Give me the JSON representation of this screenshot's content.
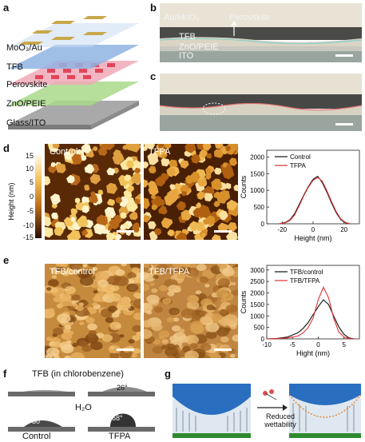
{
  "panel_labels": {
    "a": "a",
    "b": "b",
    "c": "c",
    "d": "d",
    "e": "e",
    "f": "f",
    "g": "g"
  },
  "panel_a": {
    "layers": [
      "MoO₃/Au",
      "TFB",
      "Perovskite",
      "ZnO/PEIE",
      "Glass/ITO"
    ],
    "colors": {
      "au": "#c9a84a",
      "tfb": "#8fb4e3",
      "perovskite": "#e05a6a",
      "zno": "#a8d98a",
      "glass": "#b0b0b0"
    }
  },
  "panel_b": {
    "labels": {
      "top": "Au/MnO₃",
      "perovskite": "Perovskite",
      "tfb": "TFB",
      "zno": "ZnO/PEIE",
      "ito": "ITO"
    }
  },
  "panel_d": {
    "colorbar": {
      "title": "Height (nm)",
      "ticks": [
        "15",
        "10",
        "5",
        "0",
        "-5",
        "-10",
        "-15"
      ]
    },
    "images": [
      "Control",
      "TFPA"
    ]
  },
  "panel_e": {
    "images": [
      "TFB/control",
      "TFB/TFPA"
    ]
  },
  "panel_f": {
    "title": "TFB (in chlorobenzene)",
    "middle_label": "H₂O",
    "angles": [
      "4°",
      "26°",
      "30°",
      "68°"
    ],
    "captions": [
      "Control",
      "TFPA"
    ]
  },
  "panel_g": {
    "arrow_text": "Reduced wettability"
  },
  "chart_data": [
    {
      "type": "line",
      "panel": "d",
      "xlabel": "Height (nm)",
      "ylabel": "Counts",
      "xlim": [
        -30,
        30
      ],
      "ylim": [
        0,
        2200
      ],
      "xticks": [
        -20,
        0,
        20
      ],
      "yticks": [
        0,
        500,
        1000,
        1500,
        2000
      ],
      "legend_position": "top-right",
      "series": [
        {
          "name": "Control",
          "color": "#111111",
          "x": [
            -22,
            -18,
            -15,
            -12,
            -9,
            -6,
            -3,
            0,
            3,
            6,
            9,
            12,
            15,
            18,
            21,
            24
          ],
          "y": [
            0,
            40,
            120,
            300,
            580,
            860,
            1120,
            1330,
            1420,
            1230,
            940,
            620,
            330,
            120,
            30,
            0
          ]
        },
        {
          "name": "TFPA",
          "color": "#e03030",
          "x": [
            -22,
            -18,
            -15,
            -12,
            -9,
            -6,
            -3,
            0,
            3,
            6,
            9,
            12,
            15,
            18,
            21,
            24
          ],
          "y": [
            0,
            30,
            100,
            260,
            540,
            840,
            1100,
            1300,
            1390,
            1270,
            980,
            660,
            360,
            140,
            40,
            0
          ]
        }
      ]
    },
    {
      "type": "line",
      "panel": "e",
      "xlabel": "Hight (nm)",
      "ylabel": "Counts",
      "xlim": [
        -10,
        8
      ],
      "ylim": [
        0,
        3200
      ],
      "xticks": [
        -10,
        -5,
        0,
        5
      ],
      "yticks": [
        0,
        500,
        1000,
        1500,
        2000,
        2500,
        3000
      ],
      "legend_position": "top-right",
      "series": [
        {
          "name": "TFB/control",
          "color": "#111111",
          "x": [
            -10,
            -8,
            -6,
            -4,
            -3,
            -2,
            -1,
            0,
            1,
            2,
            3,
            4,
            5,
            6,
            7
          ],
          "y": [
            0,
            20,
            80,
            260,
            440,
            700,
            1050,
            1400,
            1700,
            1500,
            1000,
            520,
            200,
            40,
            0
          ]
        },
        {
          "name": "TFB/TFPA",
          "color": "#e03030",
          "x": [
            -10,
            -8,
            -6,
            -4,
            -3,
            -2,
            -1,
            0,
            1,
            2,
            3,
            4,
            5,
            6,
            7
          ],
          "y": [
            0,
            10,
            40,
            120,
            250,
            480,
            900,
            1700,
            2250,
            1800,
            900,
            300,
            80,
            10,
            0
          ]
        }
      ]
    }
  ]
}
